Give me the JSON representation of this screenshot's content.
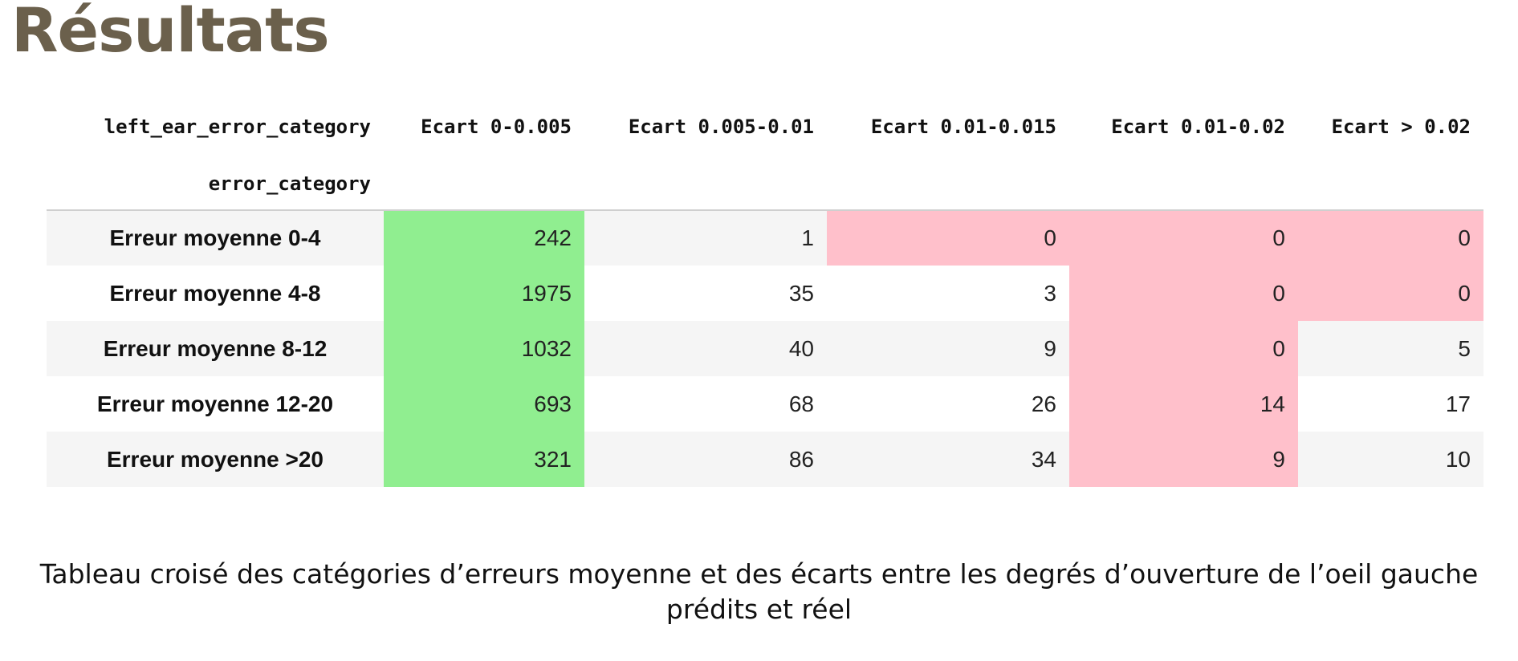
{
  "title": "Résultats",
  "colors": {
    "title": "#6b604c",
    "green": "#90ee90",
    "pink": "#ffc0cb",
    "stripe": "#f5f5f5"
  },
  "table": {
    "corner_col_header": "left_ear_error_category",
    "corner_row_header": "error_category",
    "columns": [
      "Ecart 0-0.005",
      "Ecart 0.005-0.01",
      "Ecart 0.01-0.015",
      "Ecart 0.01-0.02",
      "Ecart > 0.02"
    ],
    "rows": [
      {
        "label": "Erreur moyenne 0-4",
        "values": [
          "242",
          "1",
          "0",
          "0",
          "0"
        ],
        "highlight": [
          "green",
          "",
          "pink",
          "pink",
          "pink"
        ]
      },
      {
        "label": "Erreur moyenne 4-8",
        "values": [
          "1975",
          "35",
          "3",
          "0",
          "0"
        ],
        "highlight": [
          "green",
          "",
          "",
          "pink",
          "pink"
        ]
      },
      {
        "label": "Erreur moyenne 8-12",
        "values": [
          "1032",
          "40",
          "9",
          "0",
          "5"
        ],
        "highlight": [
          "green",
          "",
          "",
          "pink",
          ""
        ]
      },
      {
        "label": "Erreur moyenne 12-20",
        "values": [
          "693",
          "68",
          "26",
          "14",
          "17"
        ],
        "highlight": [
          "green",
          "",
          "",
          "pink",
          ""
        ]
      },
      {
        "label": "Erreur moyenne >20",
        "values": [
          "321",
          "86",
          "34",
          "9",
          "10"
        ],
        "highlight": [
          "green",
          "",
          "",
          "pink",
          ""
        ]
      }
    ]
  },
  "caption": "Tableau croisé des catégories d’erreurs moyenne et des écarts entre les degrés d’ouverture de l’oeil gauche prédits et réel"
}
